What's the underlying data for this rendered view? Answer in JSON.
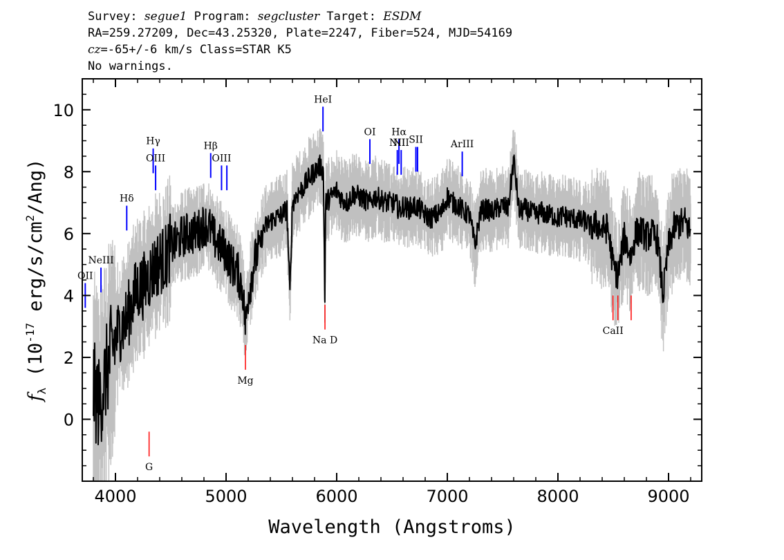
{
  "header": {
    "survey_label": "Survey:",
    "survey": "segue1",
    "program_label": "Program:",
    "program": "segcluster",
    "target_label": "Target:",
    "target": "ESDM",
    "line2": "RA=259.27209, Dec=43.25320, Plate=2247, Fiber=524, MJD=54169",
    "cz_label": "cz",
    "cz_value": "=-65+/-6",
    "cz_unit": " km/s",
    "class_text": "Class=STAR K5",
    "warnings": "No warnings."
  },
  "colors": {
    "flux": "#000000",
    "error_band": "#c0c0c0",
    "emission_lines": "#0000ff",
    "absorption_lines": "#ff0000",
    "axes": "#000000"
  },
  "chart_data": {
    "type": "line",
    "title": "",
    "xlabel": "Wavelength (Angstroms)",
    "ylabel": "f_λ (10^-17 erg/s/cm^2/Ang)",
    "xlim": [
      3700,
      9300
    ],
    "ylim": [
      -2.0,
      11.0
    ],
    "x_ticks": [
      4000,
      5000,
      6000,
      7000,
      8000,
      9000
    ],
    "y_ticks": [
      0,
      2,
      4,
      6,
      8,
      10
    ],
    "series": [
      {
        "x": [
          3800,
          3850,
          3900,
          3950,
          4000,
          4050,
          4100,
          4150,
          4200,
          4250,
          4300,
          4350,
          4400,
          4450,
          4500,
          4550,
          4600,
          4650,
          4700,
          4750,
          4800,
          4850,
          4900,
          4950,
          5000,
          5050,
          5100,
          5150,
          5175,
          5200,
          5250,
          5300,
          5350,
          5400,
          5450,
          5500,
          5550,
          5577,
          5600,
          5650,
          5700,
          5750,
          5800,
          5850,
          5880,
          5893,
          5900,
          5950,
          6000,
          6050,
          6100,
          6150,
          6200,
          6250,
          6300,
          6350,
          6400,
          6450,
          6500,
          6550,
          6563,
          6600,
          6650,
          6700,
          6750,
          6800,
          6850,
          6900,
          6950,
          7000,
          7050,
          7100,
          7150,
          7200,
          7250,
          7300,
          7350,
          7400,
          7450,
          7500,
          7550,
          7600,
          7650,
          7700,
          7750,
          7800,
          7850,
          7900,
          7950,
          8000,
          8050,
          8100,
          8150,
          8200,
          8250,
          8300,
          8350,
          8400,
          8450,
          8498,
          8542,
          8600,
          8662,
          8700,
          8750,
          8800,
          8850,
          8900,
          8950,
          9000,
          9050,
          9100,
          9150,
          9200
        ],
        "y": [
          1.0,
          0.5,
          1.2,
          2.0,
          2.6,
          3.0,
          3.2,
          3.8,
          4.2,
          4.3,
          4.6,
          4.9,
          5.1,
          5.2,
          5.6,
          5.7,
          5.9,
          6.0,
          6.0,
          6.1,
          6.3,
          6.2,
          5.8,
          5.6,
          5.4,
          5.0,
          4.8,
          4.2,
          3.0,
          4.0,
          5.0,
          5.6,
          6.2,
          6.4,
          6.5,
          6.6,
          6.8,
          4.0,
          7.0,
          7.3,
          7.5,
          7.8,
          8.0,
          8.2,
          8.0,
          3.8,
          7.0,
          7.2,
          7.4,
          7.1,
          7.0,
          7.3,
          7.2,
          7.1,
          7.0,
          7.2,
          7.1,
          7.0,
          7.0,
          6.9,
          6.7,
          6.9,
          6.8,
          6.9,
          6.8,
          6.6,
          6.5,
          6.6,
          6.7,
          7.2,
          7.0,
          6.9,
          6.7,
          6.6,
          5.6,
          6.7,
          6.8,
          6.7,
          6.8,
          6.9,
          6.8,
          8.4,
          6.7,
          6.8,
          6.7,
          6.6,
          6.7,
          6.6,
          6.6,
          6.5,
          6.6,
          6.5,
          6.5,
          6.4,
          6.4,
          6.2,
          6.3,
          6.1,
          6.2,
          5.0,
          4.6,
          5.9,
          5.2,
          6.0,
          6.1,
          5.9,
          6.0,
          5.8,
          4.0,
          5.6,
          6.2,
          6.3,
          6.4,
          6.0
        ]
      }
    ],
    "emission_lines": [
      {
        "label": "OII",
        "wavelength": 3727
      },
      {
        "label": "NeIII",
        "wavelength": 3869
      },
      {
        "label": "Hδ",
        "wavelength": 4102
      },
      {
        "label": "Hγ",
        "wavelength": 4341
      },
      {
        "label": "OIII",
        "wavelength": 4363
      },
      {
        "label": "Hβ",
        "wavelength": 4861
      },
      {
        "label": "OIII",
        "wavelength": 4959
      },
      {
        "label": "OIII",
        "wavelength": 5007
      },
      {
        "label": "HeI",
        "wavelength": 5876
      },
      {
        "label": "OI",
        "wavelength": 6300
      },
      {
        "label": "NII",
        "wavelength": 6548
      },
      {
        "label": "Hα",
        "wavelength": 6563
      },
      {
        "label": "NII",
        "wavelength": 6583
      },
      {
        "label": "SII",
        "wavelength": 6716
      },
      {
        "label": "SII",
        "wavelength": 6731
      },
      {
        "label": "ArIII",
        "wavelength": 7135
      }
    ],
    "absorption_lines": [
      {
        "label": "G",
        "wavelength": 4304
      },
      {
        "label": "Mg",
        "wavelength": 5175
      },
      {
        "label": "Na D",
        "wavelength": 5894
      },
      {
        "label": "CaII",
        "wavelength": 8498
      },
      {
        "label": "CaII",
        "wavelength": 8542
      },
      {
        "label": "CaII",
        "wavelength": 8662
      }
    ]
  }
}
